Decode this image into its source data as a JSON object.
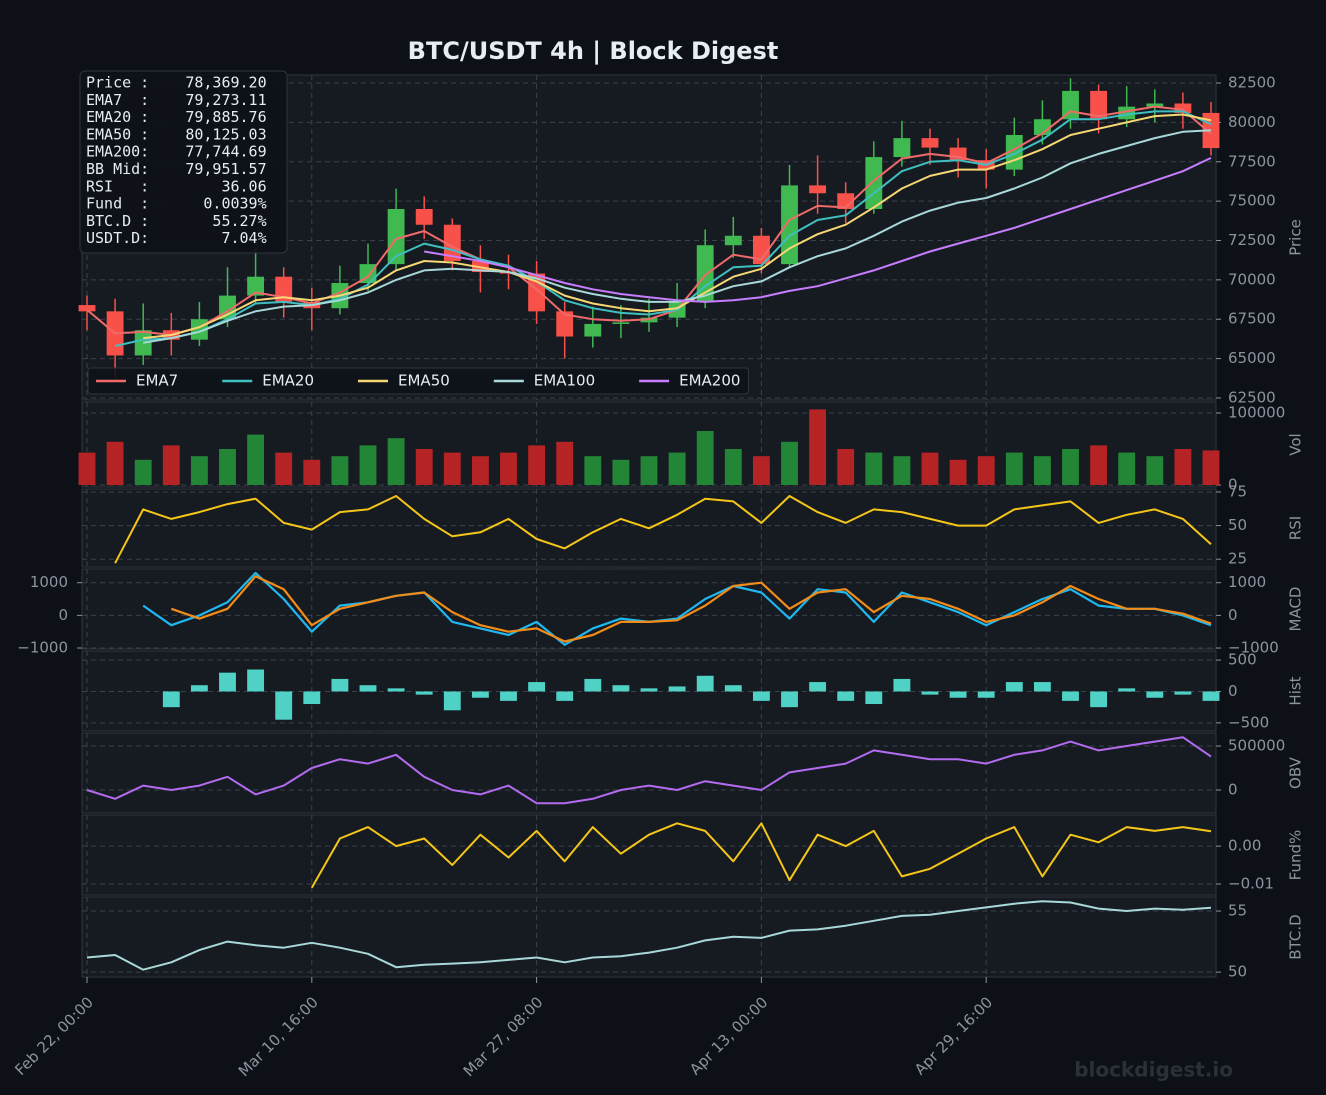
{
  "chart_data": [
    {
      "type": "candlestick",
      "title": "BTC/USDT  4h  |  Block Digest",
      "ylabel": "Price",
      "categories": [
        "Feb 22, 00:00",
        null,
        null,
        null,
        null,
        null,
        null,
        null,
        "Mar 10, 16:00",
        null,
        null,
        null,
        null,
        null,
        null,
        null,
        "Mar 27, 08:00",
        null,
        null,
        null,
        null,
        null,
        null,
        null,
        "Apr 13, 00:00",
        null,
        null,
        null,
        null,
        null,
        null,
        null,
        "Apr 29, 16:00",
        null,
        null,
        null,
        null,
        null,
        null,
        null,
        null
      ],
      "open": [
        68400,
        68000,
        65200,
        66800,
        66200,
        67500,
        69000,
        70200,
        68600,
        68200,
        69800,
        71000,
        74500,
        73500,
        71200,
        70500,
        70400,
        68000,
        66400,
        67200,
        67300,
        67600,
        68600,
        72200,
        72800,
        71000,
        76000,
        75500,
        74500,
        77800,
        79000,
        78400,
        77600,
        77000,
        79200,
        80200,
        82000,
        80200,
        81000,
        81200,
        80600
      ],
      "high": [
        69000,
        68800,
        68500,
        67900,
        68600,
        70800,
        72000,
        70800,
        69500,
        70900,
        72300,
        75800,
        75300,
        73900,
        72200,
        71600,
        71200,
        68600,
        68300,
        68400,
        68800,
        69800,
        73200,
        74000,
        73300,
        77300,
        77900,
        76200,
        78800,
        80100,
        79600,
        79000,
        78300,
        80300,
        81400,
        82800,
        82400,
        82300,
        82100,
        81900,
        81300
      ],
      "low": [
        66800,
        63800,
        64600,
        65200,
        65800,
        67000,
        68500,
        67600,
        66800,
        67800,
        69300,
        70600,
        72600,
        70600,
        69200,
        69400,
        67200,
        65000,
        65700,
        66300,
        66700,
        67000,
        68200,
        71400,
        70400,
        70800,
        74200,
        73600,
        74200,
        77200,
        77300,
        76500,
        75800,
        76600,
        78600,
        79600,
        79300,
        79700,
        80000,
        79600,
        77900
      ],
      "close": [
        68000,
        65200,
        66800,
        66200,
        67500,
        69000,
        70200,
        68600,
        68200,
        69800,
        71000,
        74500,
        73500,
        71200,
        70500,
        70400,
        68000,
        66400,
        67200,
        67300,
        67600,
        68600,
        72200,
        72800,
        71000,
        76000,
        75500,
        74500,
        77800,
        79000,
        78400,
        77600,
        77000,
        79200,
        80200,
        82000,
        80200,
        81000,
        81200,
        80600,
        78369.2
      ],
      "up_color": "#3fb950",
      "down_color": "#f85149",
      "series": [
        {
          "name": "EMA7",
          "color": "#f06a6a",
          "values": [
            68100,
            66600,
            66700,
            66500,
            67000,
            68000,
            69200,
            68900,
            68500,
            69200,
            70200,
            72600,
            73100,
            72100,
            71300,
            70800,
            69400,
            67800,
            67500,
            67400,
            67500,
            68100,
            70300,
            71600,
            71300,
            73800,
            74700,
            74600,
            76300,
            77700,
            78000,
            77800,
            77400,
            78300,
            79300,
            80700,
            80400,
            80700,
            81000,
            80800,
            79273.11
          ]
        },
        {
          "name": "EMA20",
          "color": "#3fbfbf",
          "values": [
            null,
            65800,
            66200,
            66300,
            66700,
            67500,
            68500,
            68600,
            68400,
            68800,
            69700,
            71500,
            72300,
            71900,
            71300,
            70900,
            69900,
            68700,
            68200,
            67900,
            67800,
            68100,
            69600,
            70800,
            70900,
            72800,
            73800,
            74100,
            75500,
            76900,
            77500,
            77600,
            77300,
            78000,
            78900,
            80200,
            80200,
            80500,
            80700,
            80700,
            79885.76
          ]
        },
        {
          "name": "EMA50",
          "color": "#f7d774",
          "values": [
            null,
            null,
            66300,
            66500,
            67000,
            67800,
            68700,
            68900,
            68700,
            69000,
            69500,
            70600,
            71200,
            71100,
            70800,
            70500,
            69900,
            69000,
            68500,
            68200,
            68000,
            68200,
            69200,
            70200,
            70700,
            72000,
            72900,
            73500,
            74600,
            75800,
            76600,
            77000,
            77000,
            77600,
            78300,
            79200,
            79600,
            80000,
            80400,
            80500,
            80125.03
          ]
        },
        {
          "name": "EMA100",
          "color": "#a8d8d8",
          "values": [
            null,
            null,
            66000,
            66300,
            66700,
            67400,
            68000,
            68300,
            68400,
            68700,
            69200,
            70000,
            70600,
            70700,
            70600,
            70500,
            70100,
            69500,
            69100,
            68800,
            68600,
            68600,
            69000,
            69600,
            69900,
            70800,
            71500,
            72000,
            72800,
            73700,
            74400,
            74900,
            75200,
            75800,
            76500,
            77400,
            78000,
            78500,
            79000,
            79400,
            79500
          ]
        },
        {
          "name": "EMA200",
          "color": "#c77dff",
          "values": [
            null,
            null,
            null,
            null,
            null,
            null,
            null,
            null,
            null,
            null,
            null,
            null,
            71800,
            71500,
            71200,
            70800,
            70300,
            69800,
            69400,
            69100,
            68900,
            68700,
            68600,
            68700,
            68900,
            69300,
            69600,
            70100,
            70600,
            71200,
            71800,
            72300,
            72800,
            73300,
            73900,
            74500,
            75100,
            75700,
            76300,
            76900,
            77744.69
          ]
        }
      ],
      "ylim": [
        62370,
        83010
      ],
      "yticks": [
        62500,
        65000,
        67500,
        70000,
        72500,
        75000,
        77500,
        80000,
        82500
      ],
      "grid": true,
      "legend": "lower left",
      "info": [
        "Price :    78,369.20",
        "EMA7  :    79,273.11",
        "EMA20 :    79,885.76",
        "EMA50 :    80,125.03",
        "EMA200:    77,744.69",
        "BB Mid:    79,951.57",
        "RSI   :        36.06",
        "Fund  :      0.0039%",
        "BTC.D :       55.27%",
        "USDT.D:        7.04%"
      ]
    },
    {
      "type": "bar",
      "ylabel": "Vol",
      "up_color": "#238636",
      "down_color": "#b62324",
      "values": [
        45000,
        60000,
        35000,
        55000,
        40000,
        50000,
        70000,
        45000,
        35000,
        40000,
        55000,
        65000,
        50000,
        45000,
        40000,
        45000,
        55000,
        60000,
        40000,
        35000,
        40000,
        45000,
        75000,
        50000,
        40000,
        60000,
        105000,
        50000,
        45000,
        40000,
        45000,
        35000,
        40000,
        45000,
        40000,
        50000,
        55000,
        45000,
        40000,
        50000,
        48000
      ],
      "ylim": [
        -2800,
        115300
      ],
      "yticks": [
        0,
        100000
      ],
      "grid": true
    },
    {
      "type": "line",
      "ylabel": "RSI",
      "color": "#f5c518",
      "values": [
        null,
        22,
        62,
        55,
        60,
        66,
        70,
        52,
        47,
        60,
        62,
        72,
        55,
        42,
        45,
        55,
        40,
        33,
        45,
        55,
        48,
        58,
        70,
        68,
        52,
        72,
        60,
        52,
        62,
        60,
        55,
        50,
        50,
        62,
        65,
        68,
        52,
        58,
        62,
        55,
        36.06
      ],
      "ylim": [
        19.2,
        77.2
      ],
      "yticks": [
        25,
        50,
        75
      ],
      "grid": true
    },
    {
      "type": "line",
      "ylabel": "MACD",
      "left_axis": true,
      "series": [
        {
          "color": "#1fb8f0",
          "values": [
            null,
            null,
            300,
            -300,
            0,
            400,
            1300,
            500,
            -500,
            300,
            400,
            600,
            700,
            -200,
            -400,
            -600,
            -200,
            -900,
            -400,
            -100,
            -200,
            -100,
            500,
            900,
            700,
            -100,
            800,
            700,
            -200,
            700,
            400,
            100,
            -300,
            100,
            500,
            800,
            300,
            200,
            200,
            0,
            -300
          ]
        },
        {
          "color": "#f28c18",
          "values": [
            null,
            null,
            null,
            200,
            -100,
            200,
            1200,
            800,
            -300,
            200,
            400,
            600,
            700,
            100,
            -300,
            -500,
            -400,
            -800,
            -600,
            -200,
            -200,
            -150,
            300,
            900,
            1000,
            200,
            700,
            800,
            100,
            600,
            500,
            200,
            -200,
            0,
            400,
            900,
            500,
            200,
            200,
            50,
            -250
          ]
        }
      ],
      "ylim": [
        -1030,
        1420
      ],
      "yticks": [
        {
          "value": -1000,
          "label": "−1000"
        },
        0,
        1000
      ],
      "grid": true
    },
    {
      "type": "bar",
      "ylabel": "Hist",
      "color": "#4fd1c5",
      "values": [
        null,
        null,
        null,
        -250,
        100,
        300,
        350,
        -450,
        -200,
        200,
        100,
        50,
        -50,
        -300,
        -100,
        -150,
        150,
        -150,
        200,
        100,
        50,
        80,
        250,
        100,
        -150,
        -250,
        150,
        -150,
        -200,
        200,
        -50,
        -100,
        -100,
        150,
        150,
        -150,
        -250,
        50,
        -100,
        -50,
        -150
      ],
      "ylim": [
        -630,
        645
      ],
      "yticks": [
        {
          "value": -500,
          "label": "−500"
        },
        0,
        500
      ],
      "grid": true
    },
    {
      "type": "line",
      "ylabel": "OBV",
      "color": "#b36bf0",
      "values": [
        0,
        -100000,
        50000,
        0,
        50000,
        150000,
        -50000,
        50000,
        250000,
        350000,
        300000,
        400000,
        150000,
        0,
        -50000,
        50000,
        -150000,
        -150000,
        -100000,
        0,
        50000,
        0,
        100000,
        50000,
        0,
        200000,
        250000,
        300000,
        450000,
        400000,
        350000,
        350000,
        300000,
        400000,
        450000,
        550000,
        450000,
        500000,
        550000,
        600000,
        380000
      ],
      "ylim": [
        -261000,
        648000
      ],
      "yticks": [
        0,
        500000
      ],
      "grid": true
    },
    {
      "type": "line",
      "ylabel": "Fund%",
      "color": "#f5c518",
      "values": [
        null,
        null,
        null,
        null,
        null,
        null,
        null,
        null,
        -0.011,
        0.002,
        0.005,
        0,
        0.002,
        -0.005,
        0.003,
        -0.003,
        0.004,
        -0.004,
        0.005,
        -0.002,
        0.003,
        0.006,
        0.004,
        -0.004,
        0.006,
        -0.009,
        0.003,
        0,
        0.004,
        -0.008,
        -0.006,
        -0.002,
        0.002,
        0.005,
        -0.008,
        0.003,
        0.001,
        0.005,
        0.004,
        0.005,
        0.0039
      ],
      "ylim": [
        -0.0129,
        0.0082
      ],
      "yticks": [
        {
          "value": -0.01,
          "label": "−0.01"
        },
        {
          "value": 0,
          "label": "0.00"
        }
      ],
      "grid": true
    },
    {
      "type": "line",
      "ylabel": "BTC.D",
      "color": "#a8d8d8",
      "values": [
        51.2,
        51.4,
        50.2,
        50.8,
        51.8,
        52.5,
        52.2,
        52.0,
        52.4,
        52.0,
        51.5,
        50.4,
        50.6,
        50.7,
        50.8,
        51.0,
        51.2,
        50.8,
        51.2,
        51.3,
        51.6,
        52.0,
        52.6,
        52.9,
        52.8,
        53.4,
        53.5,
        53.8,
        54.2,
        54.6,
        54.7,
        55.0,
        55.3,
        55.6,
        55.8,
        55.7,
        55.2,
        55.0,
        55.2,
        55.1,
        55.27
      ],
      "ylim": [
        49.6,
        56.15
      ],
      "yticks": [
        50,
        55
      ],
      "grid": true
    }
  ],
  "watermark": "blockdigest.io"
}
